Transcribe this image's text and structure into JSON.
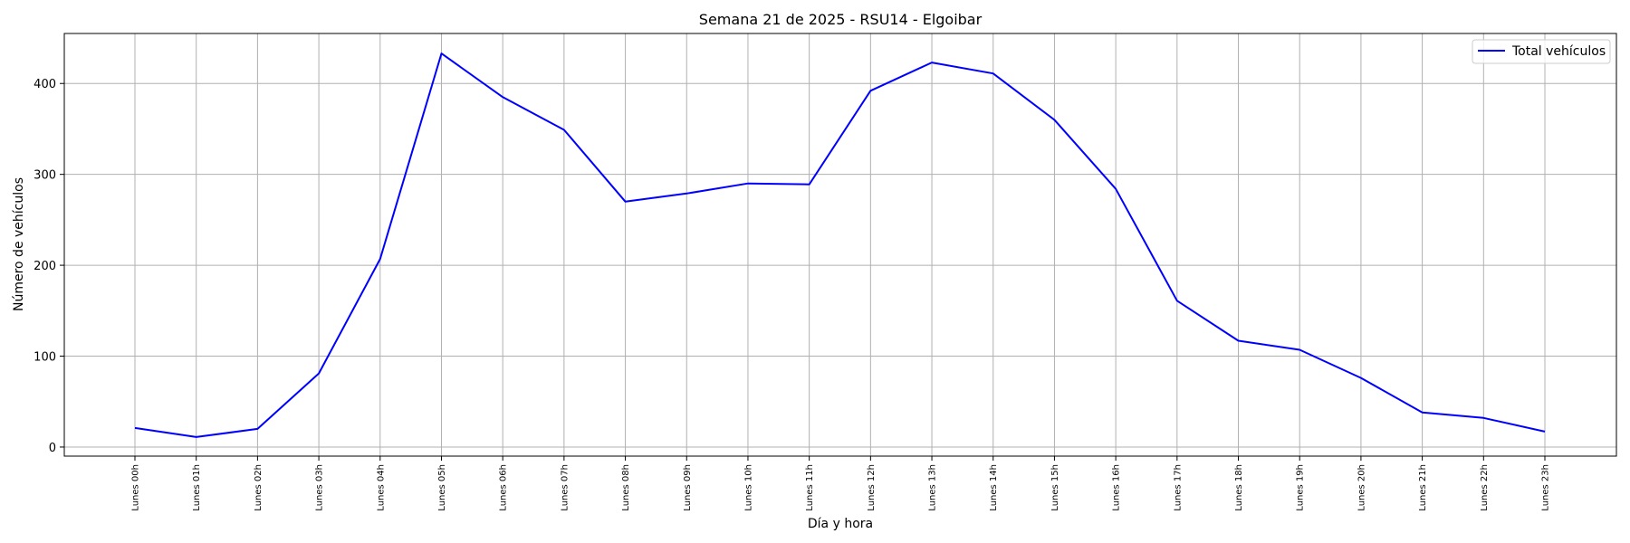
{
  "chart_data": {
    "type": "line",
    "title": "Semana 21 de 2025 - RSU14 - Elgoibar",
    "xlabel": "Día y hora",
    "ylabel": "Número de vehículos",
    "categories": [
      "Lunes 00h",
      "Lunes 01h",
      "Lunes 02h",
      "Lunes 03h",
      "Lunes 04h",
      "Lunes 05h",
      "Lunes 06h",
      "Lunes 07h",
      "Lunes 08h",
      "Lunes 09h",
      "Lunes 10h",
      "Lunes 11h",
      "Lunes 12h",
      "Lunes 13h",
      "Lunes 14h",
      "Lunes 15h",
      "Lunes 16h",
      "Lunes 17h",
      "Lunes 18h",
      "Lunes 19h",
      "Lunes 20h",
      "Lunes 21h",
      "Lunes 22h",
      "Lunes 23h"
    ],
    "series": [
      {
        "name": "Total vehículos",
        "color": "#0000ff",
        "values": [
          21,
          11,
          20,
          81,
          207,
          433,
          385,
          349,
          270,
          279,
          290,
          289,
          392,
          423,
          411,
          360,
          284,
          161,
          117,
          107,
          76,
          38,
          32,
          17
        ]
      }
    ],
    "ylim": [
      -10,
      455
    ],
    "yticks": [
      0,
      100,
      200,
      300,
      400
    ],
    "grid": true,
    "legend_position": "top-right"
  }
}
